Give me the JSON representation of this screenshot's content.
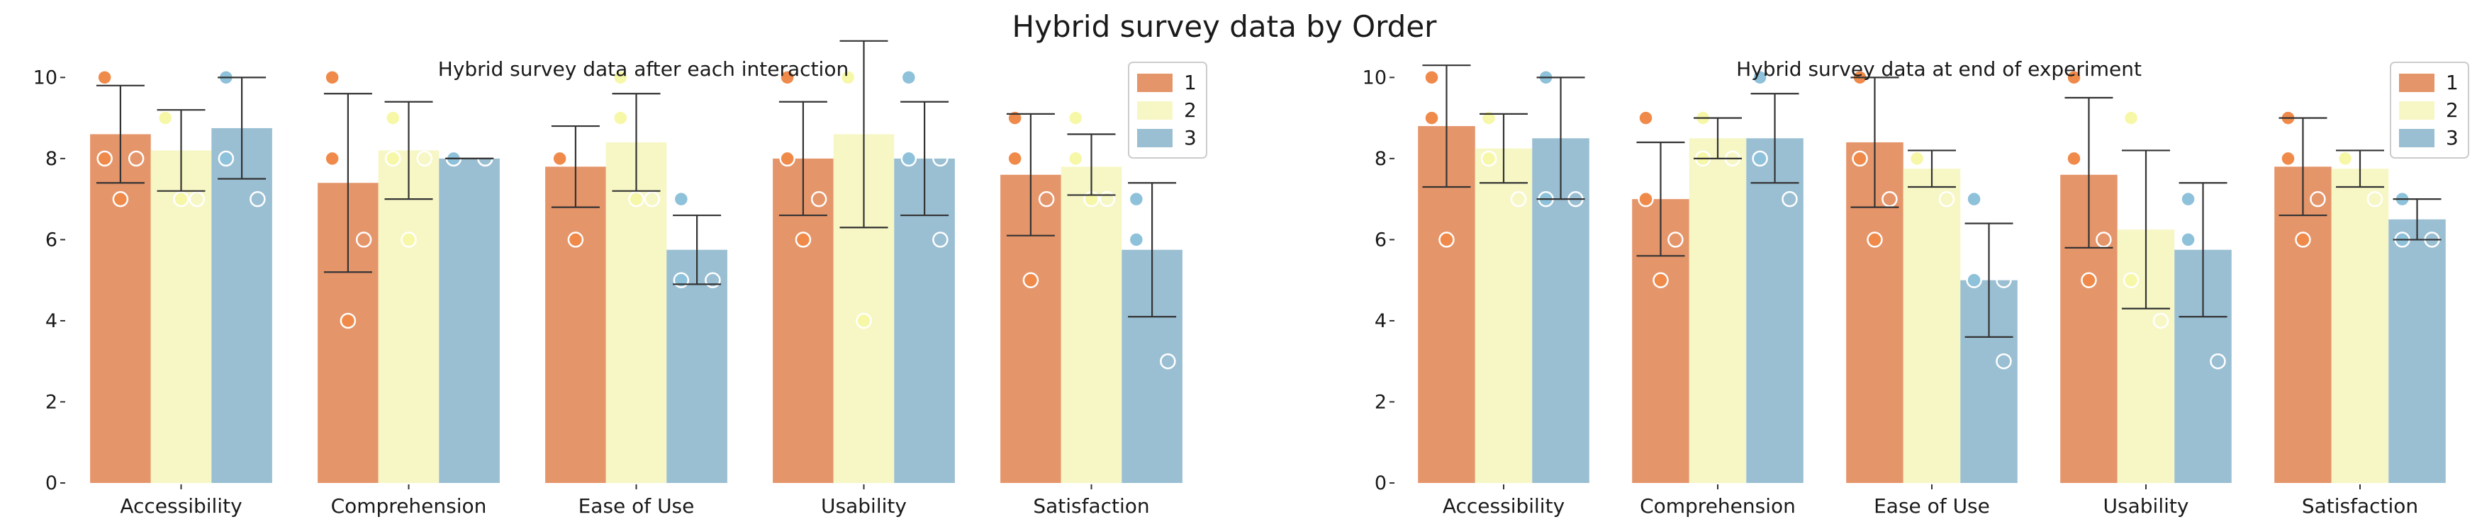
{
  "figure_title": "Hybrid survey data by Order",
  "chart_data": [
    {
      "type": "bar",
      "title": "Hybrid survey data after each interaction",
      "xlabel": "",
      "ylabel": "",
      "ylim": [
        0,
        10.6
      ],
      "yticks": [
        0,
        2,
        4,
        6,
        8,
        10
      ],
      "grid": false,
      "legend": "top-right",
      "categories": [
        "Accessibility",
        "Comprehension",
        "Ease of Use",
        "Usability",
        "Satisfaction"
      ],
      "series": [
        {
          "name": "1",
          "color": "#e5956a",
          "dot_color": "#ef8a4a",
          "values": [
            8.6,
            7.4,
            7.8,
            8.0,
            7.6
          ],
          "errors": [
            [
              7.4,
              9.8
            ],
            [
              5.2,
              9.6
            ],
            [
              6.8,
              8.8
            ],
            [
              6.6,
              9.4
            ],
            [
              6.1,
              9.1
            ]
          ],
          "points": [
            [
              10,
              10,
              8,
              8,
              7
            ],
            [
              10,
              9,
              8,
              6,
              4
            ],
            [
              8,
              8,
              8,
              9,
              6
            ],
            [
              10,
              9,
              8,
              7,
              6
            ],
            [
              9,
              9,
              8,
              7,
              5
            ]
          ]
        },
        {
          "name": "2",
          "color": "#f7f7c6",
          "dot_color": "#f7f7a8",
          "values": [
            8.2,
            8.2,
            8.4,
            8.6,
            7.8
          ],
          "errors": [
            [
              7.2,
              9.2
            ],
            [
              7.0,
              9.4
            ],
            [
              7.2,
              9.6
            ],
            [
              6.3,
              10.9
            ],
            [
              7.1,
              8.6
            ]
          ],
          "points": [
            [
              9,
              9,
              9,
              7,
              7
            ],
            [
              9,
              9,
              8,
              8,
              6
            ],
            [
              10,
              9,
              9,
              7,
              7
            ],
            [
              10,
              10,
              10,
              9,
              4
            ],
            [
              9,
              8,
              8,
              7,
              7
            ]
          ]
        },
        {
          "name": "3",
          "color": "#9abfd3",
          "dot_color": "#8ec1da",
          "values": [
            8.75,
            8.0,
            5.75,
            8.0,
            5.75
          ],
          "errors": [
            [
              7.5,
              10.0
            ],
            [
              8.0,
              8.0
            ],
            [
              4.9,
              6.6
            ],
            [
              6.6,
              9.4
            ],
            [
              4.1,
              7.4
            ]
          ],
          "points": [
            [
              10,
              10,
              8,
              7
            ],
            [
              8,
              8,
              8,
              8
            ],
            [
              7,
              6,
              5,
              5
            ],
            [
              10,
              8,
              8,
              6
            ],
            [
              7,
              7,
              6,
              3
            ]
          ]
        }
      ]
    },
    {
      "type": "bar",
      "title": "Hybrid survey data at end of experiment",
      "xlabel": "",
      "ylabel": "",
      "ylim": [
        0,
        10.6
      ],
      "yticks": [
        0,
        2,
        4,
        6,
        8,
        10
      ],
      "grid": false,
      "legend": "top-right",
      "categories": [
        "Accessibility",
        "Comprehension",
        "Ease of Use",
        "Usability",
        "Satisfaction"
      ],
      "series": [
        {
          "name": "1",
          "color": "#e5956a",
          "dot_color": "#ef8a4a",
          "values": [
            8.8,
            7.0,
            8.4,
            7.6,
            7.8
          ],
          "errors": [
            [
              7.3,
              10.3
            ],
            [
              5.6,
              8.4
            ],
            [
              6.8,
              10.0
            ],
            [
              5.8,
              9.5
            ],
            [
              6.6,
              9.0
            ]
          ],
          "points": [
            [
              10,
              10,
              9,
              9,
              6
            ],
            [
              9,
              8,
              7,
              6,
              5
            ],
            [
              10,
              10,
              8,
              7,
              6
            ],
            [
              10,
              9,
              8,
              6,
              5
            ],
            [
              9,
              9,
              8,
              7,
              6
            ]
          ]
        },
        {
          "name": "2",
          "color": "#f7f7c6",
          "dot_color": "#f7f7a8",
          "values": [
            8.25,
            8.5,
            7.75,
            6.25,
            7.75
          ],
          "errors": [
            [
              7.4,
              9.1
            ],
            [
              8.0,
              9.0
            ],
            [
              7.3,
              8.2
            ],
            [
              4.3,
              8.2
            ],
            [
              7.3,
              8.2
            ]
          ],
          "points": [
            [
              9,
              9,
              8,
              7
            ],
            [
              9,
              9,
              8,
              8
            ],
            [
              8,
              8,
              8,
              7
            ],
            [
              9,
              7,
              5,
              4
            ],
            [
              8,
              8,
              8,
              7
            ]
          ]
        },
        {
          "name": "3",
          "color": "#9abfd3",
          "dot_color": "#8ec1da",
          "values": [
            8.5,
            8.5,
            5.0,
            5.75,
            6.5
          ],
          "errors": [
            [
              7.0,
              10.0
            ],
            [
              7.4,
              9.6
            ],
            [
              3.6,
              6.4
            ],
            [
              4.1,
              7.4
            ],
            [
              6.0,
              7.0
            ]
          ],
          "points": [
            [
              10,
              10,
              7,
              7
            ],
            [
              10,
              9,
              8,
              7
            ],
            [
              7,
              5,
              5,
              3
            ],
            [
              7,
              7,
              6,
              3
            ],
            [
              7,
              7,
              6,
              6
            ]
          ]
        }
      ]
    }
  ]
}
